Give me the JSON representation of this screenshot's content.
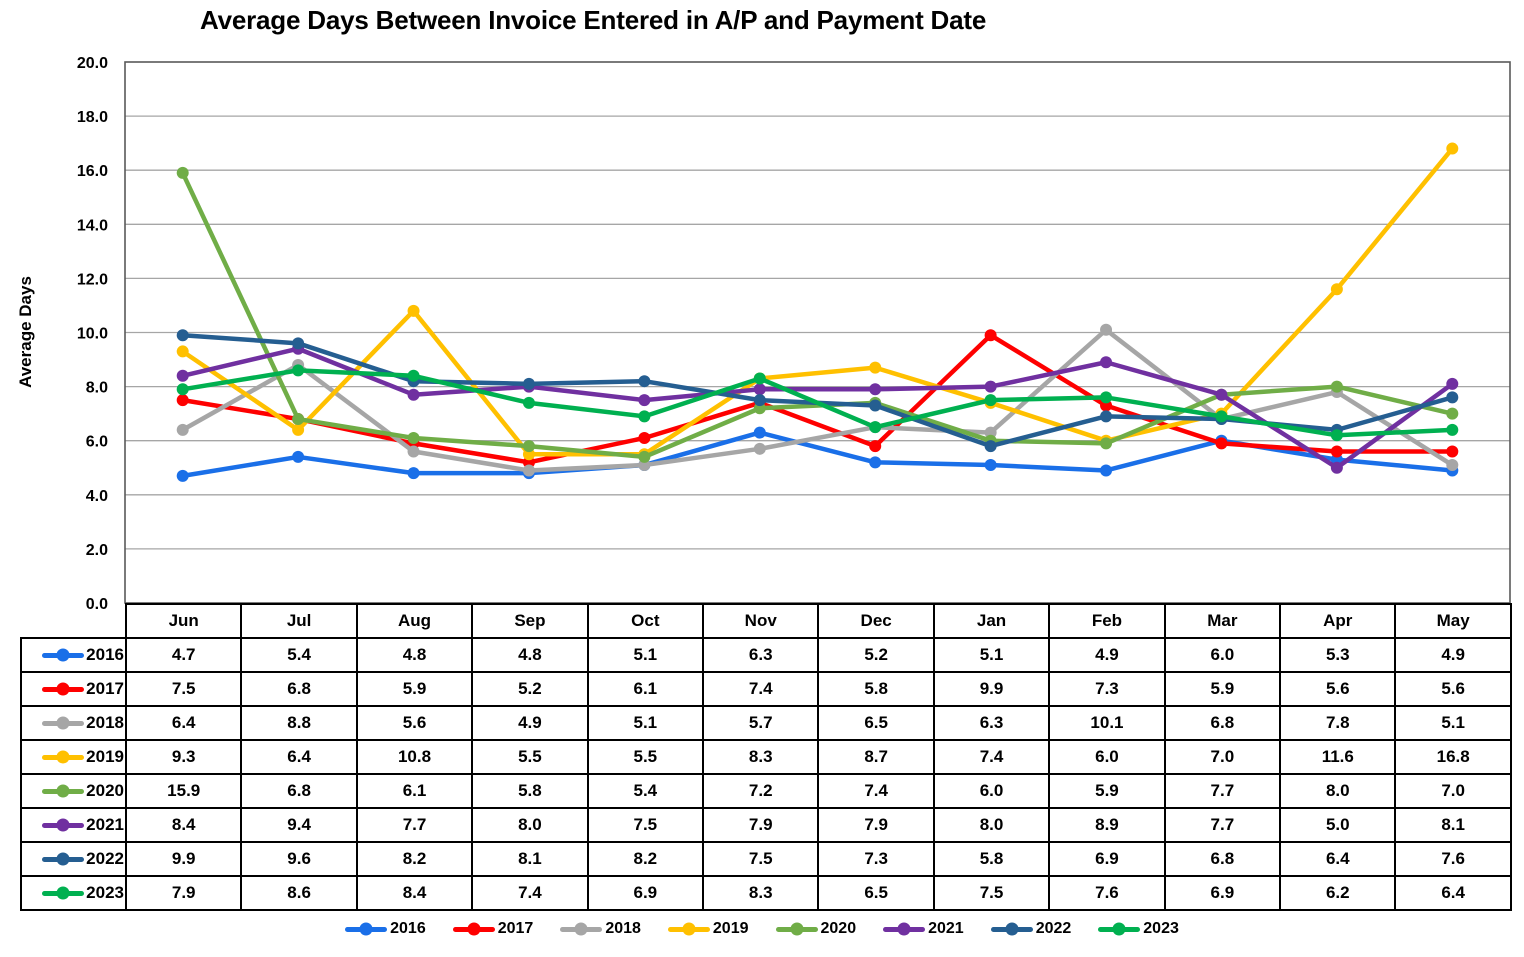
{
  "title": "Average Days Between Invoice Entered in A/P and Payment Date",
  "colors": {
    "gridline": "#A6A6A6",
    "plot_border": "#595959",
    "text": "#000000"
  },
  "chart_data": {
    "type": "line",
    "title": "Average Days Between Invoice Entered in A/P and Payment Date",
    "xlabel": "",
    "ylabel": "Average Days",
    "ylim": [
      0,
      20
    ],
    "ytick_step": 2,
    "grid": true,
    "legend_position": "bottom",
    "categories": [
      "Jun",
      "Jul",
      "Aug",
      "Sep",
      "Oct",
      "Nov",
      "Dec",
      "Jan",
      "Feb",
      "Mar",
      "Apr",
      "May"
    ],
    "series": [
      {
        "name": "2016",
        "color": "#1A6FE8",
        "values": [
          4.7,
          5.4,
          4.8,
          4.8,
          5.1,
          6.3,
          5.2,
          5.1,
          4.9,
          6.0,
          5.3,
          4.9
        ]
      },
      {
        "name": "2017",
        "color": "#FE0000",
        "values": [
          7.5,
          6.8,
          5.9,
          5.2,
          6.1,
          7.4,
          5.8,
          9.9,
          7.3,
          5.9,
          5.6,
          5.6
        ]
      },
      {
        "name": "2018",
        "color": "#A6A6A6",
        "values": [
          6.4,
          8.8,
          5.6,
          4.9,
          5.1,
          5.7,
          6.5,
          6.3,
          10.1,
          6.8,
          7.8,
          5.1
        ]
      },
      {
        "name": "2019",
        "color": "#FFC000",
        "values": [
          9.3,
          6.4,
          10.8,
          5.5,
          5.5,
          8.3,
          8.7,
          7.4,
          6.0,
          7.0,
          11.6,
          16.8
        ]
      },
      {
        "name": "2020",
        "color": "#70AD47",
        "values": [
          15.9,
          6.8,
          6.1,
          5.8,
          5.4,
          7.2,
          7.4,
          6.0,
          5.9,
          7.7,
          8.0,
          7.0
        ]
      },
      {
        "name": "2021",
        "color": "#7030A0",
        "values": [
          8.4,
          9.4,
          7.7,
          8.0,
          7.5,
          7.9,
          7.9,
          8.0,
          8.9,
          7.7,
          5.0,
          8.1
        ]
      },
      {
        "name": "2022",
        "color": "#255E91",
        "values": [
          9.9,
          9.6,
          8.2,
          8.1,
          8.2,
          7.5,
          7.3,
          5.8,
          6.9,
          6.8,
          6.4,
          7.6
        ]
      },
      {
        "name": "2023",
        "color": "#00B050",
        "values": [
          7.9,
          8.6,
          8.4,
          7.4,
          6.9,
          8.3,
          6.5,
          7.5,
          7.6,
          6.9,
          6.2,
          6.4
        ]
      }
    ]
  }
}
